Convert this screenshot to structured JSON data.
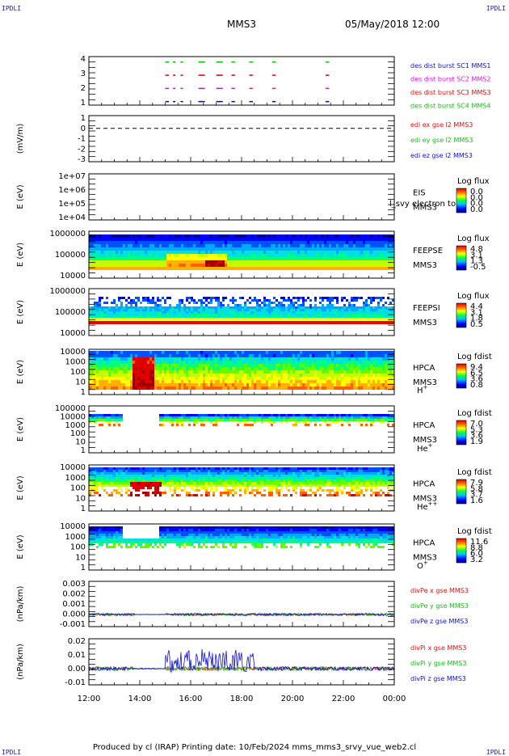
{
  "corners": {
    "tl": "IPDLI",
    "tr": "IPDLI",
    "bl": "IPDLI",
    "br": "IPDLI"
  },
  "header": {
    "spacecraft": "MMS3",
    "datetime": "05/May/2018 12:00"
  },
  "footer": "Produced by cl (IRAP)   Printing date: 10/Feb/2024   mms_mms3_srvy_vue_web2.cl",
  "colors": {
    "red": "#e01010",
    "green": "#10c010",
    "blue": "#1010d0",
    "magenta": "#e010e0",
    "black": "#000000"
  },
  "chart_data": {
    "type": "multi-panel",
    "x_axis": {
      "ticks": [
        "12:00",
        "14:00",
        "16:00",
        "18:00",
        "20:00",
        "22:00",
        "00:00"
      ],
      "range": [
        "12:00",
        "00:00"
      ]
    },
    "panels": [
      {
        "id": "burst",
        "type": "scatter",
        "ylabel": "",
        "yticks": [
          "4",
          "3",
          "2",
          "1"
        ],
        "legend": [
          {
            "text": "des dist burst SC1 MMS1",
            "color": "blue"
          },
          {
            "text": "des dist burst SC2 MMS2",
            "color": "magenta"
          },
          {
            "text": "des dist burst SC3 MMS3",
            "color": "red"
          },
          {
            "text": "des dist burst SC4 MMS4",
            "color": "green"
          }
        ],
        "series": [
          {
            "level": 4,
            "color": "green",
            "intervals": [
              [
                15.0,
                15.1
              ],
              [
                15.3,
                15.35
              ],
              [
                15.6,
                15.65
              ],
              [
                16.3,
                16.5
              ],
              [
                17.0,
                17.2
              ],
              [
                17.6,
                17.7
              ],
              [
                18.3,
                18.4
              ],
              [
                19.2,
                19.3
              ],
              [
                21.3,
                21.4
              ]
            ]
          },
          {
            "level": 3,
            "color": "red",
            "intervals": [
              [
                15.0,
                15.1
              ],
              [
                15.3,
                15.35
              ],
              [
                15.6,
                15.65
              ],
              [
                16.3,
                16.5
              ],
              [
                17.0,
                17.2
              ],
              [
                17.6,
                17.7
              ],
              [
                18.3,
                18.4
              ],
              [
                19.2,
                19.3
              ],
              [
                21.3,
                21.4
              ]
            ]
          },
          {
            "level": 2,
            "color": "magenta",
            "intervals": [
              [
                15.0,
                15.1
              ],
              [
                15.3,
                15.35
              ],
              [
                15.6,
                15.65
              ],
              [
                16.3,
                16.5
              ],
              [
                17.0,
                17.2
              ],
              [
                17.6,
                17.7
              ],
              [
                18.3,
                18.4
              ],
              [
                19.2,
                19.3
              ],
              [
                21.3,
                21.4
              ]
            ]
          },
          {
            "level": 1,
            "color": "blue",
            "intervals": [
              [
                15.0,
                15.1
              ],
              [
                15.3,
                15.35
              ],
              [
                15.6,
                15.65
              ],
              [
                16.3,
                16.5
              ],
              [
                17.0,
                17.2
              ],
              [
                17.6,
                17.7
              ],
              [
                18.3,
                18.4
              ],
              [
                19.2,
                19.3
              ],
              [
                21.3,
                21.4
              ]
            ]
          }
        ]
      },
      {
        "id": "edi",
        "type": "line",
        "ylabel": "(mV/m)",
        "yticks": [
          "1",
          "0",
          "-1",
          "-2",
          "-3"
        ],
        "legend": [
          {
            "text": "edi ex gse l2 MMS3",
            "color": "red"
          },
          {
            "text": "edi ey gse l2 MMS3",
            "color": "green"
          },
          {
            "text": "edi ez gse l2 MMS3",
            "color": "blue"
          }
        ]
      },
      {
        "id": "eis",
        "type": "heatmap",
        "ylabel": "E (eV)",
        "yticks": [
          "1e+07",
          "1e+06",
          "1e+05",
          "1e+04"
        ],
        "labels": [
          "EIS",
          "MMS3"
        ],
        "overlay": "l_svy electron to",
        "colorbar": {
          "title": "Log flux",
          "ticks": [
            "0.0",
            "0.0",
            "0.0",
            "0.0"
          ]
        }
      },
      {
        "id": "feepse",
        "type": "heatmap",
        "ylabel": "E (eV)",
        "yticks": [
          "1000000",
          "100000",
          "10000"
        ],
        "labels": [
          "FEEPSE",
          "MMS3"
        ],
        "colorbar": {
          "title": "Log flux",
          "ticks": [
            "4.8",
            "3.1",
            "1.3",
            "-0.5"
          ]
        }
      },
      {
        "id": "feepsi",
        "type": "heatmap",
        "ylabel": "E (eV)",
        "yticks": [
          "1000000",
          "100000",
          "10000"
        ],
        "labels": [
          "FEEPSI",
          "MMS3"
        ],
        "colorbar": {
          "title": "Log flux",
          "ticks": [
            "4.4",
            "3.1",
            "1.8",
            "0.5"
          ]
        }
      },
      {
        "id": "hpca_h",
        "type": "heatmap",
        "ylabel": "E (eV)",
        "yticks": [
          "10000",
          "1000",
          "100",
          "10",
          "1"
        ],
        "labels": [
          "HPCA",
          "MMS3"
        ],
        "species": "H",
        "charge": "+",
        "colorbar": {
          "title": "Log fdist",
          "ticks": [
            "9.4",
            "6.5",
            "3.6",
            "0.8"
          ]
        }
      },
      {
        "id": "hpca_he",
        "type": "heatmap",
        "ylabel": "E (eV)",
        "yticks": [
          "100000",
          "10000",
          "1000",
          "100",
          "10",
          "1"
        ],
        "labels": [
          "HPCA",
          "MMS3"
        ],
        "species": "He",
        "charge": "+",
        "colorbar": {
          "title": "Log fdist",
          "ticks": [
            "7.0",
            "5.3",
            "3.6",
            "1.9"
          ]
        }
      },
      {
        "id": "hpca_hepp",
        "type": "heatmap",
        "ylabel": "E (eV)",
        "yticks": [
          "10000",
          "1000",
          "100",
          "10",
          "1"
        ],
        "labels": [
          "HPCA",
          "MMS3"
        ],
        "species": "He",
        "charge": "++",
        "colorbar": {
          "title": "Log fdist",
          "ticks": [
            "7.9",
            "5.8",
            "3.7",
            "1.6"
          ]
        }
      },
      {
        "id": "hpca_o",
        "type": "heatmap",
        "ylabel": "E (eV)",
        "yticks": [
          "10000",
          "1000",
          "100",
          "10",
          "1"
        ],
        "labels": [
          "HPCA",
          "MMS3"
        ],
        "species": "O",
        "charge": "+",
        "colorbar": {
          "title": "Log fdist",
          "ticks": [
            "11.6",
            "8.8",
            "6.0",
            "3.2"
          ]
        }
      },
      {
        "id": "divpe",
        "type": "line",
        "ylabel": "(nPa/km)",
        "yticks": [
          "0.003",
          "0.002",
          "0.001",
          "0.000",
          "-0.001"
        ],
        "legend": [
          {
            "text": "divPe x gse MMS3",
            "color": "red"
          },
          {
            "text": "divPe y gse MMS3",
            "color": "green"
          },
          {
            "text": "divPe z gse MMS3",
            "color": "blue"
          }
        ]
      },
      {
        "id": "divpi",
        "type": "line",
        "ylabel": "(nPa/km)",
        "yticks": [
          "0.02",
          "0.01",
          "0.00",
          "-0.01"
        ],
        "legend": [
          {
            "text": "divPi x gse MMS3",
            "color": "red"
          },
          {
            "text": "divPi y gse MMS3",
            "color": "green"
          },
          {
            "text": "divPi z gse MMS3",
            "color": "blue"
          }
        ]
      }
    ]
  }
}
